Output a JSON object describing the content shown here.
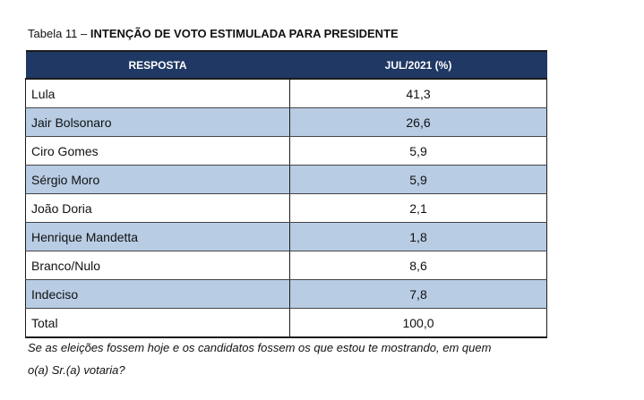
{
  "caption": {
    "prefix": "Tabela 11 – ",
    "title": "INTENÇÃO DE VOTO ESTIMULADA PARA PRESIDENTE"
  },
  "table": {
    "headers": [
      "RESPOSTA",
      "JUL/2021 (%)"
    ],
    "rows": [
      [
        "Lula",
        "41,3"
      ],
      [
        "Jair Bolsonaro",
        "26,6"
      ],
      [
        "Ciro Gomes",
        "5,9"
      ],
      [
        "Sérgio Moro",
        "5,9"
      ],
      [
        "João Doria",
        "2,1"
      ],
      [
        "Henrique Mandetta",
        "1,8"
      ],
      [
        "Branco/Nulo",
        "8,6"
      ],
      [
        "Indeciso",
        "7,8"
      ],
      [
        "Total",
        "100,0"
      ]
    ]
  },
  "note": {
    "line1": "Se as eleições fossem hoje e os candidatos fossem os que estou te mostrando, em quem",
    "line2": "o(a) Sr.(a) votaria?"
  },
  "colors": {
    "header_bg": "#1f3864",
    "stripe_bg": "#b8cce4"
  }
}
